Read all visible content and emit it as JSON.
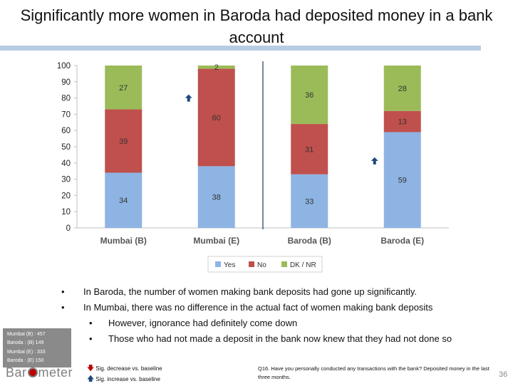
{
  "slide": {
    "title": "Significantly more women in Baroda had deposited money in a bank account",
    "bullets": [
      "In Baroda, the number of women making bank deposits had gone up significantly.",
      "In Mumbai, there was no difference in the actual fact of women making bank deposits"
    ],
    "sub_bullets": [
      "However, ignorance had definitely come down",
      "Those who had not made a deposit in the bank now knew that they had not done so"
    ],
    "sample_boxes": [
      {
        "line1": "Mumbai (B) : 457",
        "line2": "Baroda : (B) 149"
      },
      {
        "line1": "Mumbai (E) : 333",
        "line2": "Baroda : (E) 150"
      }
    ],
    "logo": {
      "before": "Bar",
      "after": "meter"
    },
    "sig_legend": {
      "decrease": "Sig. decrease vs. baseline",
      "increase": "Sig. increase vs. baseline",
      "decrease_color": "#c00000",
      "increase_color": "#1f497d"
    },
    "question_note": "Q16. Have you personally conducted any transactions with the bank? Deposited money in the last three months.",
    "page_number": "36"
  },
  "chart_data": {
    "type": "bar",
    "stacked": true,
    "categories": [
      "Mumbai (B)",
      "Mumbai (E)",
      "Baroda (B)",
      "Baroda (E)"
    ],
    "series": [
      {
        "name": "Yes",
        "values": [
          34,
          38,
          33,
          59
        ],
        "color": "#8eb4e3"
      },
      {
        "name": "No",
        "values": [
          39,
          60,
          31,
          13
        ],
        "color": "#c0504d"
      },
      {
        "name": "DK / NR",
        "values": [
          27,
          2,
          36,
          28
        ],
        "color": "#9bbb59"
      }
    ],
    "ylim": [
      0,
      100
    ],
    "yticks": [
      0,
      10,
      20,
      30,
      40,
      50,
      60,
      70,
      80,
      90,
      100
    ],
    "legend_position": "bottom",
    "grid": false,
    "sig_increase_markers": [
      "Mumbai (E)",
      "Baroda (E)"
    ],
    "divider_between": [
      "Mumbai (E)",
      "Baroda (B)"
    ]
  }
}
